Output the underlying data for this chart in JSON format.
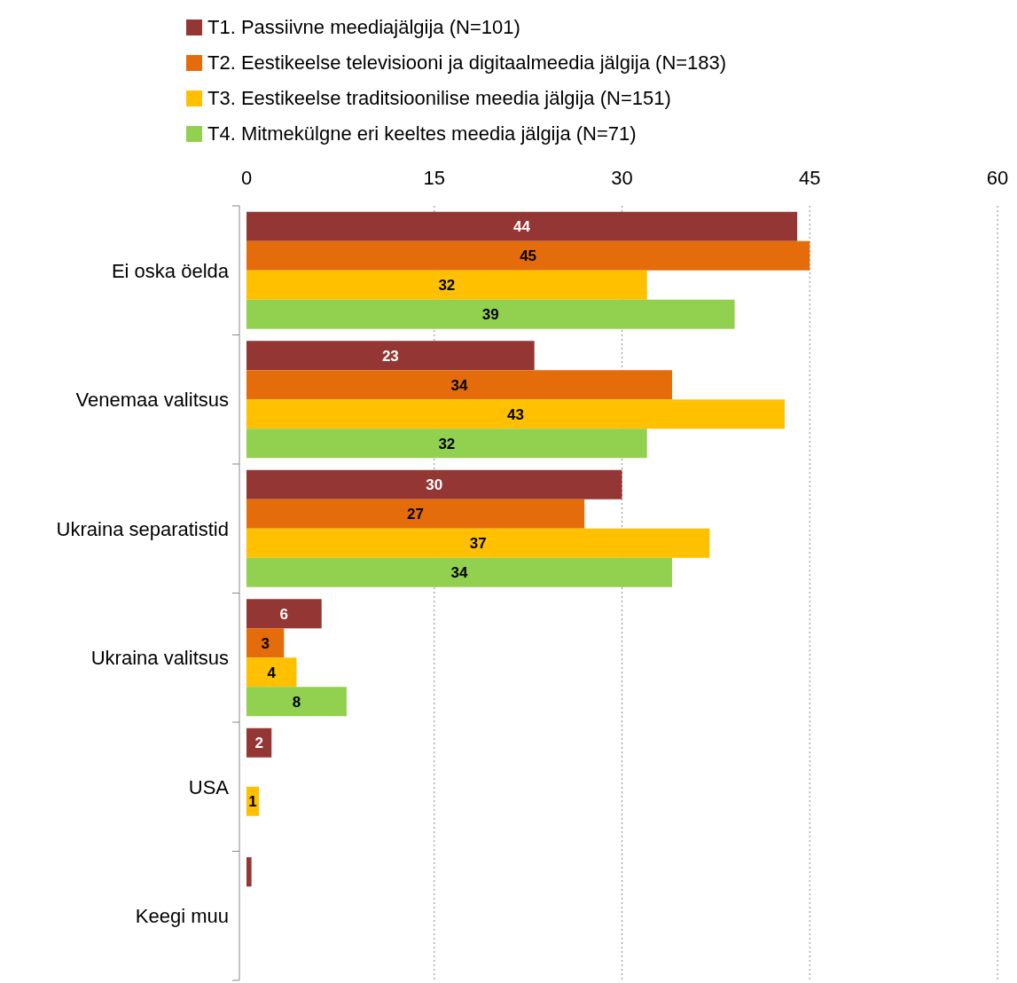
{
  "chart_data": {
    "type": "bar",
    "orientation": "horizontal",
    "categories": [
      "Ei oska öelda",
      "Venemaa valitsus",
      "Ukraina separatistid",
      "Ukraina valitsus",
      "USA",
      "Keegi muu"
    ],
    "series": [
      {
        "name": "T1. Passiivne meediajälgija (N=101)",
        "color": "#943634",
        "values": [
          44,
          23,
          30,
          6,
          2,
          0.4
        ],
        "value_labels": [
          "44",
          "23",
          "30",
          "6",
          "2",
          null
        ]
      },
      {
        "name": "T2. Eestikeelse televisiooni ja digitaalmeedia jälgija (N=183)",
        "color": "#e46c0a",
        "values": [
          45,
          34,
          27,
          3,
          null,
          null
        ],
        "value_labels": [
          "45",
          "34",
          "27",
          "3",
          null,
          null
        ]
      },
      {
        "name": "T3. Eestikeelse traditsioonilise meedia jälgija (N=151)",
        "color": "#ffc000",
        "values": [
          32,
          43,
          37,
          4,
          1,
          null
        ],
        "value_labels": [
          "32",
          "43",
          "37",
          "4",
          "1",
          null
        ]
      },
      {
        "name": "T4. Mitmekülgne eri keeltes meedia jälgija (N=71)",
        "color": "#92d050",
        "values": [
          39,
          32,
          34,
          8,
          null,
          null
        ],
        "value_labels": [
          "39",
          "32",
          "34",
          "8",
          null,
          null
        ]
      }
    ],
    "xlim": [
      0,
      60
    ],
    "xticks": [
      0,
      15,
      30,
      45,
      60
    ],
    "grid": "x",
    "legend": "top left"
  }
}
